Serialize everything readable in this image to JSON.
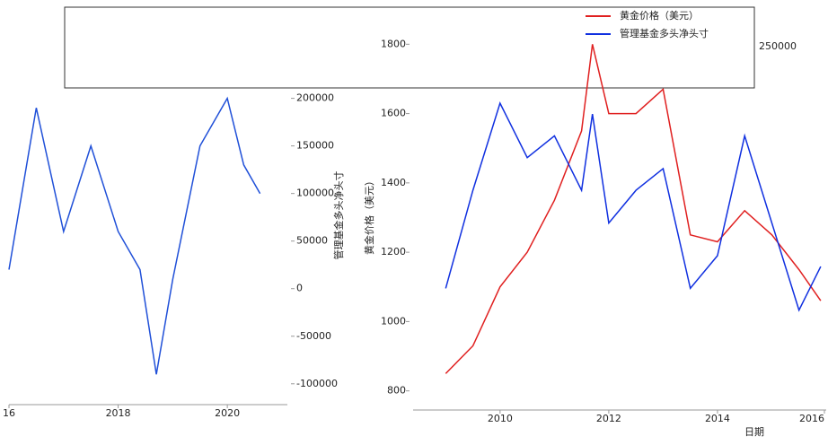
{
  "chart_data": [
    {
      "type": "line",
      "ylabel": "管理基金多头净头寸",
      "x": [
        2016.0,
        2016.5,
        2017.0,
        2017.5,
        2018.0,
        2018.4,
        2018.7,
        2019.0,
        2019.5,
        2020.0,
        2020.3,
        2020.6
      ],
      "series": [
        {
          "name": "管理基金多头净头寸",
          "color": "#2050d8",
          "values": [
            20000,
            190000,
            60000,
            150000,
            60000,
            20000,
            -90000,
            10000,
            150000,
            200000,
            130000,
            100000
          ]
        }
      ],
      "xlim": [
        2016.0,
        2021.1
      ],
      "xticks": [
        {
          "value": 2016,
          "label": "16"
        },
        2018,
        2020
      ],
      "ylim": [
        -120000,
        210000
      ],
      "yticks": [
        -100000,
        -50000,
        0,
        50000,
        100000,
        150000,
        200000
      ]
    },
    {
      "type": "line",
      "xlabel": "日期",
      "ylabel": "黄金价格（美元）",
      "legend": "upper right",
      "x": [
        2009.0,
        2009.5,
        2010.0,
        2010.5,
        2011.0,
        2011.5,
        2011.7,
        2012.0,
        2012.5,
        2013.0,
        2013.5,
        2014.0,
        2014.5,
        2015.0,
        2015.5,
        2015.9
      ],
      "series": [
        {
          "name": "黄金价格（美元）",
          "color": "#e02020",
          "values": [
            850,
            930,
            1100,
            1200,
            1350,
            1550,
            1800,
            1600,
            1600,
            1670,
            1250,
            1230,
            1320,
            1250,
            1150,
            1060
          ]
        },
        {
          "name": "管理基金多头净头寸",
          "color": "#1030e0",
          "axis": "y2",
          "values": [
            60000,
            150000,
            230000,
            180000,
            200000,
            150000,
            220000,
            120000,
            150000,
            170000,
            60000,
            90000,
            200000,
            120000,
            40000,
            80000
          ]
        }
      ],
      "xlim": [
        2008.4,
        2016.0
      ],
      "xticks": [
        2010,
        2012,
        2014,
        2016
      ],
      "ylim": [
        750,
        1850
      ],
      "yticks": [
        800,
        1000,
        1200,
        1400,
        1600,
        1800
      ],
      "y2lim": [
        -50000,
        300000
      ],
      "y2ticks": [
        250000
      ]
    }
  ]
}
